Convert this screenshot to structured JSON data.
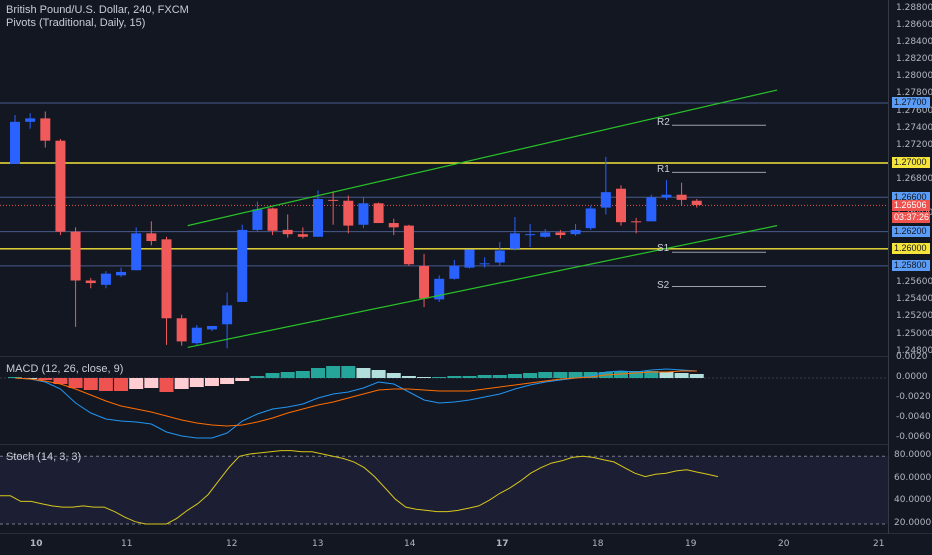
{
  "header": {
    "title": "British Pound/U.S. Dollar, 240, FXCM",
    "indicator": "Pivots (Traditional, Daily, 15)"
  },
  "pivots": {
    "r2": "R2",
    "r1": "R1",
    "s1": "S1",
    "s2": "S2"
  },
  "price_axis": {
    "ticks": [
      "1.28800",
      "1.28600",
      "1.28400",
      "1.28200",
      "1.28000",
      "1.27800",
      "1.27600",
      "1.27400",
      "1.27200",
      "1.26800",
      "1.26400",
      "1.25600",
      "1.25400",
      "1.25200",
      "1.25000",
      "1.24800"
    ],
    "tags": [
      {
        "label": "1.27700",
        "color": "#5b9cf6"
      },
      {
        "label": "1.27000",
        "color": "#f5e43a"
      },
      {
        "label": "1.26600",
        "color": "#5b9cf6"
      },
      {
        "label": "1.26506",
        "color": "#ef5350"
      },
      {
        "label": "03:37:26",
        "color": "#ef5350"
      },
      {
        "label": "1.26200",
        "color": "#5b9cf6"
      },
      {
        "label": "1.26000",
        "color": "#f5e43a"
      },
      {
        "label": "1.25800",
        "color": "#5b9cf6"
      }
    ]
  },
  "macd": {
    "label": "MACD (12, 26, close, 9)",
    "ticks": [
      "0.0020",
      "0.0000",
      "-0.0020",
      "-0.0040",
      "-0.0060"
    ]
  },
  "stoch": {
    "label": "Stoch (14, 3, 3)",
    "ticks": [
      "80.0000",
      "60.0000",
      "40.0000",
      "20.0000"
    ]
  },
  "time_axis": {
    "labels": [
      "10",
      "11",
      "12",
      "13",
      "14",
      "17",
      "18",
      "19",
      "20",
      "21"
    ]
  },
  "colors": {
    "up": "#2962ff",
    "down": "#f05a5a",
    "channel": "#28c228",
    "level": "#f5e43a",
    "hline": "#4a5a8c"
  },
  "chart_data": [
    {
      "type": "candlestick",
      "title": "British Pound/U.S. Dollar, 240, FXCM",
      "ylim": [
        1.2475,
        1.289
      ],
      "candles": [
        {
          "o": 1.2699,
          "h": 1.2756,
          "l": 1.2699,
          "c": 1.2748
        },
        {
          "o": 1.2748,
          "h": 1.2758,
          "l": 1.274,
          "c": 1.2752
        },
        {
          "o": 1.2752,
          "h": 1.276,
          "l": 1.2718,
          "c": 1.2726
        },
        {
          "o": 1.2726,
          "h": 1.2728,
          "l": 1.2616,
          "c": 1.262
        },
        {
          "o": 1.262,
          "h": 1.2625,
          "l": 1.2509,
          "c": 1.2563
        },
        {
          "o": 1.2563,
          "h": 1.2566,
          "l": 1.2554,
          "c": 1.256
        },
        {
          "o": 1.2558,
          "h": 1.2574,
          "l": 1.2554,
          "c": 1.2571
        },
        {
          "o": 1.2569,
          "h": 1.2578,
          "l": 1.2567,
          "c": 1.2573
        },
        {
          "o": 1.2575,
          "h": 1.2625,
          "l": 1.2575,
          "c": 1.2618
        },
        {
          "o": 1.2618,
          "h": 1.2632,
          "l": 1.2604,
          "c": 1.2609
        },
        {
          "o": 1.2611,
          "h": 1.2614,
          "l": 1.2488,
          "c": 1.2519
        },
        {
          "o": 1.2519,
          "h": 1.2523,
          "l": 1.2487,
          "c": 1.2492
        },
        {
          "o": 1.249,
          "h": 1.2511,
          "l": 1.2488,
          "c": 1.2508
        },
        {
          "o": 1.2506,
          "h": 1.251,
          "l": 1.2504,
          "c": 1.251
        },
        {
          "o": 1.2512,
          "h": 1.2549,
          "l": 1.2484,
          "c": 1.2534
        },
        {
          "o": 1.2538,
          "h": 1.2628,
          "l": 1.2538,
          "c": 1.2622
        },
        {
          "o": 1.2622,
          "h": 1.2655,
          "l": 1.262,
          "c": 1.2646
        },
        {
          "o": 1.2647,
          "h": 1.2648,
          "l": 1.2616,
          "c": 1.2621
        },
        {
          "o": 1.2622,
          "h": 1.264,
          "l": 1.2613,
          "c": 1.2617
        },
        {
          "o": 1.2617,
          "h": 1.2625,
          "l": 1.2612,
          "c": 1.2614
        },
        {
          "o": 1.2614,
          "h": 1.2668,
          "l": 1.2614,
          "c": 1.2658
        },
        {
          "o": 1.2657,
          "h": 1.2667,
          "l": 1.2628,
          "c": 1.2656
        },
        {
          "o": 1.2656,
          "h": 1.2662,
          "l": 1.2618,
          "c": 1.2627
        },
        {
          "o": 1.2628,
          "h": 1.266,
          "l": 1.2624,
          "c": 1.2653
        },
        {
          "o": 1.2653,
          "h": 1.2654,
          "l": 1.263,
          "c": 1.263
        },
        {
          "o": 1.263,
          "h": 1.2635,
          "l": 1.2616,
          "c": 1.2625
        },
        {
          "o": 1.2627,
          "h": 1.2628,
          "l": 1.258,
          "c": 1.2582
        },
        {
          "o": 1.258,
          "h": 1.2594,
          "l": 1.2532,
          "c": 1.2542
        },
        {
          "o": 1.2541,
          "h": 1.2569,
          "l": 1.2538,
          "c": 1.2565
        },
        {
          "o": 1.2565,
          "h": 1.2587,
          "l": 1.2564,
          "c": 1.258
        },
        {
          "o": 1.2578,
          "h": 1.2598,
          "l": 1.2577,
          "c": 1.2599
        },
        {
          "o": 1.2583,
          "h": 1.259,
          "l": 1.2578,
          "c": 1.2583
        },
        {
          "o": 1.2584,
          "h": 1.2608,
          "l": 1.258,
          "c": 1.2598
        },
        {
          "o": 1.26,
          "h": 1.2637,
          "l": 1.2598,
          "c": 1.2618
        },
        {
          "o": 1.2617,
          "h": 1.2629,
          "l": 1.2602,
          "c": 1.2617
        },
        {
          "o": 1.2614,
          "h": 1.2623,
          "l": 1.2613,
          "c": 1.2619
        },
        {
          "o": 1.2619,
          "h": 1.2622,
          "l": 1.2612,
          "c": 1.2616
        },
        {
          "o": 1.2617,
          "h": 1.2629,
          "l": 1.2615,
          "c": 1.2622
        },
        {
          "o": 1.2624,
          "h": 1.265,
          "l": 1.2622,
          "c": 1.2647
        },
        {
          "o": 1.2648,
          "h": 1.2707,
          "l": 1.264,
          "c": 1.2666
        },
        {
          "o": 1.267,
          "h": 1.2674,
          "l": 1.2627,
          "c": 1.2631
        },
        {
          "o": 1.2632,
          "h": 1.2636,
          "l": 1.2618,
          "c": 1.2631
        },
        {
          "o": 1.2632,
          "h": 1.2663,
          "l": 1.2632,
          "c": 1.266
        },
        {
          "o": 1.266,
          "h": 1.268,
          "l": 1.2657,
          "c": 1.2663
        },
        {
          "o": 1.2663,
          "h": 1.2677,
          "l": 1.265,
          "c": 1.2657
        },
        {
          "o": 1.2656,
          "h": 1.2658,
          "l": 1.2648,
          "c": 1.2651
        }
      ],
      "channel_lines": [
        {
          "from": {
            "bar": 11.4,
            "y": 1.2627
          },
          "to": {
            "bar": 50.3,
            "y": 1.2785
          }
        },
        {
          "from": {
            "bar": 11.4,
            "y": 1.2485
          },
          "to": {
            "bar": 50.3,
            "y": 1.2627
          }
        }
      ],
      "horizontal_levels": [
        1.277,
        1.27,
        1.266,
        1.262,
        1.26,
        1.258
      ],
      "pivot_levels": {
        "R2": 1.2744,
        "R1": 1.2689,
        "S1": 1.2596,
        "S2": 1.2556
      },
      "last_price": 1.26506
    },
    {
      "type": "bar",
      "title": "MACD (12, 26, close, 9)",
      "ylim": [
        -0.0066,
        0.0021
      ],
      "histogram": [
        0.0001,
        0.0,
        -0.0002,
        -0.0006,
        -0.001,
        -0.0012,
        -0.0013,
        -0.0013,
        -0.0011,
        -0.001,
        -0.0014,
        -0.0011,
        -0.0009,
        -0.0008,
        -0.0006,
        -0.0003,
        0.0002,
        0.0005,
        0.0006,
        0.0007,
        0.001,
        0.0012,
        0.0012,
        0.001,
        0.0008,
        0.0005,
        0.0002,
        0.0001,
        0.0001,
        0.0002,
        0.0002,
        0.0003,
        0.0003,
        0.0004,
        0.0005,
        0.0006,
        0.0006,
        0.0006,
        0.0006,
        0.0006,
        0.0007,
        0.0007,
        0.0007,
        0.0006,
        0.0005,
        0.0004
      ],
      "macd_line": [
        0.0,
        -0.0001,
        -0.0004,
        -0.0011,
        -0.0025,
        -0.0035,
        -0.0041,
        -0.0043,
        -0.0044,
        -0.0046,
        -0.0054,
        -0.0058,
        -0.006,
        -0.006,
        -0.0055,
        -0.0043,
        -0.0036,
        -0.0031,
        -0.0029,
        -0.0026,
        -0.002,
        -0.0016,
        -0.0014,
        -0.001,
        -0.0004,
        -0.0006,
        -0.0014,
        -0.0022,
        -0.0025,
        -0.0024,
        -0.0022,
        -0.0019,
        -0.0016,
        -0.0011,
        -0.0007,
        -0.0004,
        -0.0002,
        0.0,
        0.0002,
        0.0006,
        0.0007,
        0.0006,
        0.0008,
        0.0009,
        0.0008,
        0.0007
      ],
      "signal_line": [
        0.0,
        -0.0001,
        -0.0003,
        -0.0006,
        -0.0011,
        -0.0017,
        -0.0023,
        -0.0028,
        -0.0031,
        -0.0034,
        -0.0038,
        -0.0042,
        -0.0045,
        -0.0047,
        -0.0048,
        -0.0047,
        -0.0044,
        -0.004,
        -0.0035,
        -0.0031,
        -0.0027,
        -0.0024,
        -0.002,
        -0.0016,
        -0.0012,
        -0.0011,
        -0.0011,
        -0.0012,
        -0.0013,
        -0.0013,
        -0.0013,
        -0.0011,
        -0.0009,
        -0.0007,
        -0.0005,
        -0.0003,
        -0.0001,
        0.0,
        0.0001,
        0.0003,
        0.0004,
        0.0005,
        0.0006,
        0.0006,
        0.0007,
        0.0007
      ]
    },
    {
      "type": "line",
      "title": "Stoch (14, 3, 3)",
      "ylim": [
        12,
        90
      ],
      "k_line": [
        45,
        45,
        40,
        40,
        38,
        36,
        35,
        35,
        36,
        35,
        35,
        31,
        26,
        22,
        20,
        20,
        20,
        25,
        32,
        38,
        46,
        58,
        70,
        80,
        82,
        83,
        84,
        85,
        85,
        84,
        84,
        82,
        80,
        78,
        75,
        70,
        62,
        52,
        42,
        35,
        33,
        32,
        31,
        31,
        32,
        34,
        36,
        41,
        47,
        52,
        58,
        65,
        70,
        74,
        76,
        79,
        80,
        79,
        77,
        75,
        70,
        65,
        62,
        64,
        65,
        67,
        68,
        66,
        64,
        62
      ]
    }
  ]
}
